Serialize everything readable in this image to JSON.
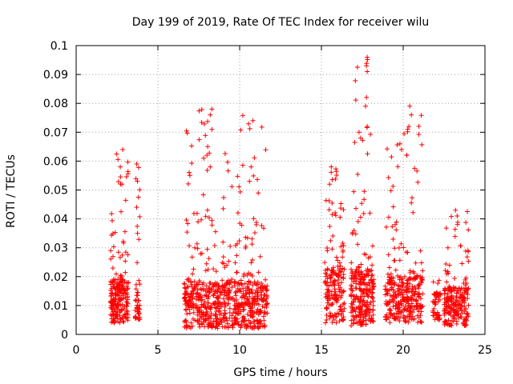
{
  "chart_data": {
    "type": "scatter",
    "title": "Day 199 of 2019, Rate Of TEC Index for receiver wilu",
    "xlabel": "GPS time / hours",
    "ylabel": "ROTI / TECUs",
    "xlim": [
      0,
      25
    ],
    "ylim": [
      0,
      0.1
    ],
    "xticks": [
      0,
      5,
      10,
      15,
      20,
      25
    ],
    "yticks": [
      0,
      0.01,
      0.02,
      0.03,
      0.04,
      0.05,
      0.06,
      0.07,
      0.08,
      0.09,
      0.1
    ],
    "xtick_labels": [
      "0",
      "5",
      "10",
      "15",
      "20",
      "25"
    ],
    "ytick_labels": [
      "0",
      "0.01",
      "0.02",
      "0.03",
      "0.04",
      "0.05",
      "0.06",
      "0.07",
      "0.08",
      "0.09",
      "0.1"
    ],
    "grid": true,
    "marker": "+",
    "color": "#ff0000",
    "series": [
      {
        "name": "ROTI",
        "clusters": [
          {
            "x_range": [
              2.1,
              3.2
            ],
            "y_core": [
              0.004,
              0.018
            ],
            "y_max": 0.064,
            "count": 230
          },
          {
            "x_range": [
              3.6,
              3.9
            ],
            "y_core": [
              0.005,
              0.015
            ],
            "y_max": 0.059,
            "count": 45
          },
          {
            "x_range": [
              6.6,
              11.7
            ],
            "y_core": [
              0.002,
              0.018
            ],
            "y_max": 0.078,
            "count": 720
          },
          {
            "x_range": [
              15.2,
              16.4
            ],
            "y_core": [
              0.004,
              0.022
            ],
            "y_max": 0.058,
            "count": 180
          },
          {
            "x_range": [
              16.8,
              18.2
            ],
            "y_core": [
              0.003,
              0.022
            ],
            "y_max": 0.096,
            "count": 260
          },
          {
            "x_range": [
              18.9,
              21.2
            ],
            "y_core": [
              0.004,
              0.02
            ],
            "y_max": 0.079,
            "count": 320
          },
          {
            "x_range": [
              21.8,
              22.3
            ],
            "y_core": [
              0.005,
              0.014
            ],
            "y_max": 0.019,
            "count": 50
          },
          {
            "x_range": [
              22.5,
              24.0
            ],
            "y_core": [
              0.003,
              0.016
            ],
            "y_max": 0.043,
            "count": 220
          }
        ],
        "peaks": [
          {
            "x": 2.85,
            "y": 0.064
          },
          {
            "x": 2.7,
            "y": 0.058
          },
          {
            "x": 2.8,
            "y": 0.052
          },
          {
            "x": 3.7,
            "y": 0.059
          },
          {
            "x": 3.75,
            "y": 0.053
          },
          {
            "x": 3.7,
            "y": 0.044
          },
          {
            "x": 3.75,
            "y": 0.035
          },
          {
            "x": 8.3,
            "y": 0.078
          },
          {
            "x": 8.2,
            "y": 0.076
          },
          {
            "x": 8.3,
            "y": 0.071
          },
          {
            "x": 8.0,
            "y": 0.062
          },
          {
            "x": 7.8,
            "y": 0.061
          },
          {
            "x": 8.2,
            "y": 0.058
          },
          {
            "x": 10.7,
            "y": 0.058
          },
          {
            "x": 10.6,
            "y": 0.053
          },
          {
            "x": 15.6,
            "y": 0.058
          },
          {
            "x": 15.5,
            "y": 0.052
          },
          {
            "x": 17.8,
            "y": 0.096
          },
          {
            "x": 17.75,
            "y": 0.093
          },
          {
            "x": 17.8,
            "y": 0.091
          },
          {
            "x": 17.7,
            "y": 0.079
          },
          {
            "x": 17.8,
            "y": 0.072
          },
          {
            "x": 17.3,
            "y": 0.07
          },
          {
            "x": 17.4,
            "y": 0.068
          },
          {
            "x": 20.4,
            "y": 0.079
          },
          {
            "x": 20.5,
            "y": 0.076
          },
          {
            "x": 20.35,
            "y": 0.072
          },
          {
            "x": 19.8,
            "y": 0.066
          },
          {
            "x": 19.9,
            "y": 0.064
          },
          {
            "x": 23.2,
            "y": 0.043
          },
          {
            "x": 23.3,
            "y": 0.041
          }
        ]
      }
    ]
  }
}
